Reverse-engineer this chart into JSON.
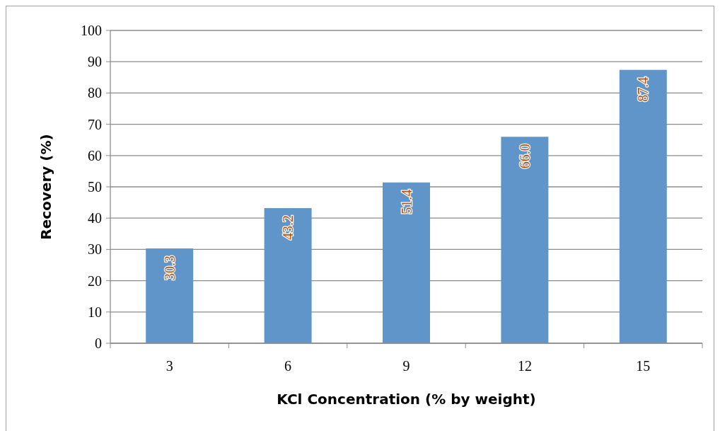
{
  "chart_data": {
    "type": "bar",
    "xlabel": "KCl Concentration (% by weight)",
    "ylabel": "Recovery (%)",
    "categories": [
      "3",
      "6",
      "9",
      "12",
      "15"
    ],
    "values": [
      30.3,
      43.2,
      51.4,
      66.0,
      87.4
    ],
    "value_labels": [
      "30.3",
      "43.2",
      "51.4",
      "66.0",
      "87.4"
    ],
    "color": "#5f95c8",
    "ylim": [
      0,
      100
    ],
    "yticks": [
      0,
      10,
      20,
      30,
      40,
      50,
      60,
      70,
      80,
      90,
      100
    ],
    "grid": "y"
  }
}
